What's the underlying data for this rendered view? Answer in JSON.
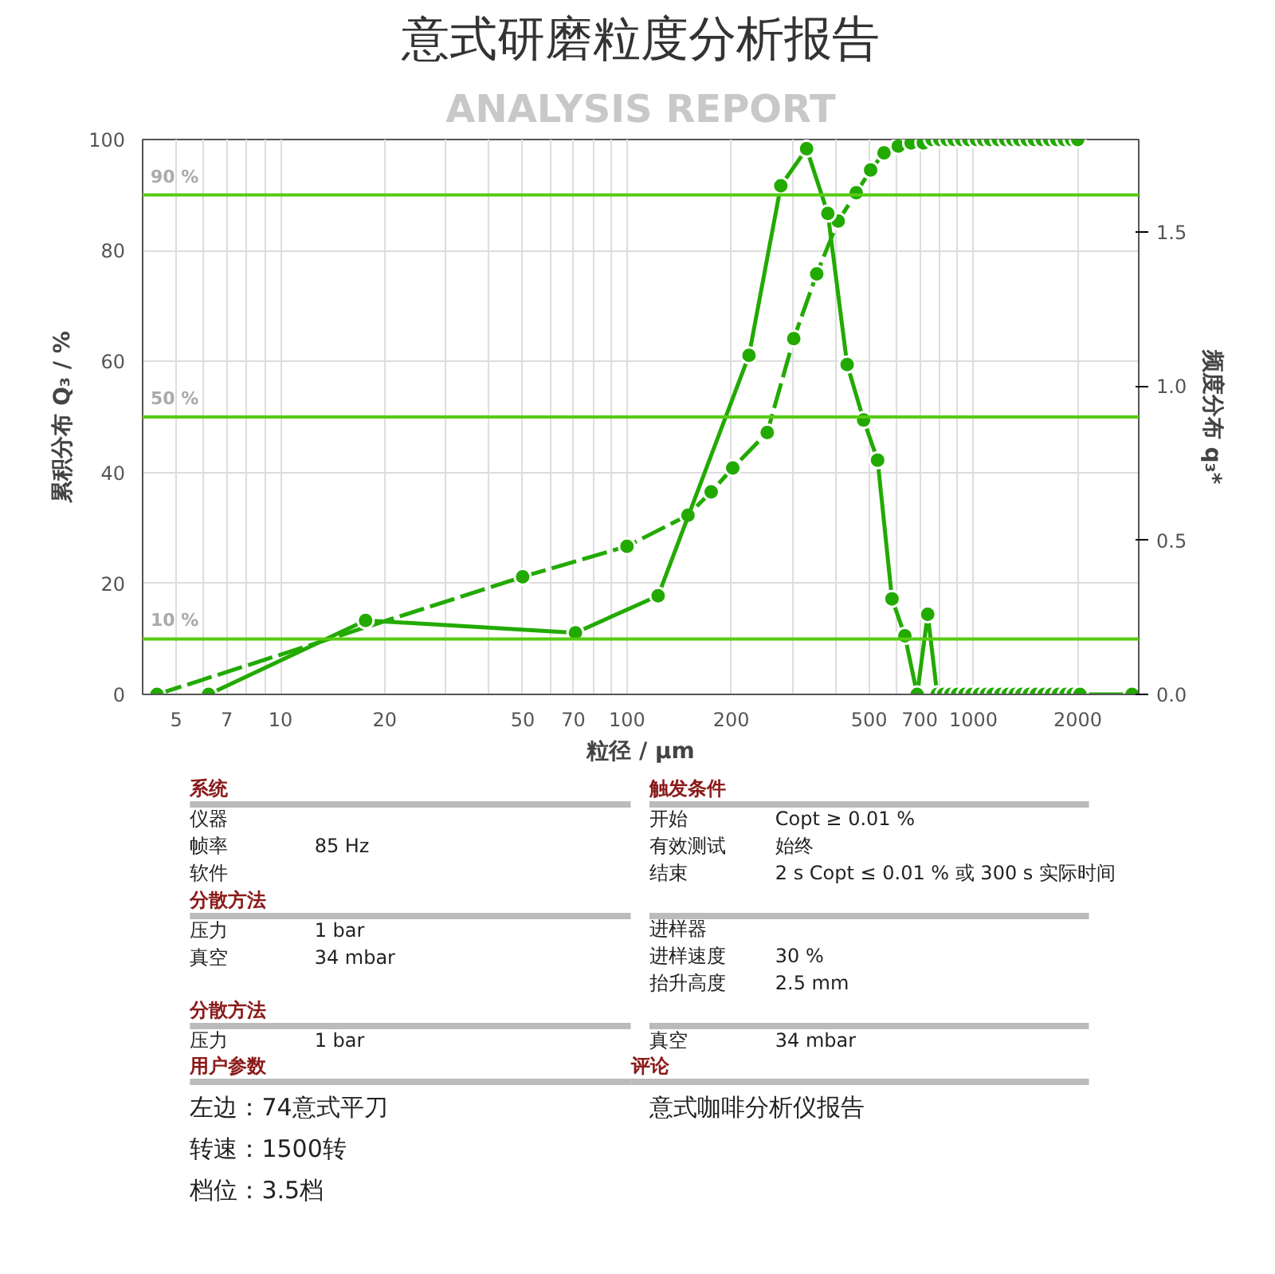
{
  "chart_data": [
    {
      "type": "line",
      "title": "意式研磨粒度分析报告",
      "subtitle": "ANALYSIS REPORT",
      "xlabel": "粒径 / µm",
      "ylabel": "累积分布 Q₃ / %",
      "y2label": "频度分布 q₃*",
      "log": "x",
      "xlim": [
        4,
        3000
      ],
      "xticks": [
        5,
        7,
        10,
        20,
        50,
        70,
        100,
        200,
        500,
        700,
        1000,
        2000
      ],
      "ylim": [
        0,
        100
      ],
      "yticks": [
        0,
        20,
        40,
        60,
        80,
        100
      ],
      "y2lim": [
        0,
        1.8
      ],
      "y2ticks": [
        {
          "value": 0,
          "label": "0.0"
        },
        {
          "value": 0.5,
          "label": "0.5"
        },
        {
          "value": 1,
          "label": "1.0"
        },
        {
          "value": 1.5,
          "label": "1.5"
        }
      ],
      "grid": true,
      "marker": "circle",
      "series": [
        {
          "color": "#22aa00",
          "line_style": "dashed",
          "x": [
            4.4,
            50,
            100,
            150,
            175,
            202,
            254,
            303,
            353,
            407,
            459,
            505,
            552,
            607,
            661,
            717,
            760,
            800,
            840,
            880,
            925,
            970,
            1020,
            1070,
            1120,
            1180,
            1240,
            1300,
            1360,
            1430,
            1500,
            1580,
            1660,
            1740,
            1830,
            1920,
            2000
          ],
          "values": [
            0,
            21.2,
            26.7,
            32.3,
            36.5,
            40.8,
            47.2,
            64.1,
            75.8,
            85.3,
            90.4,
            94.5,
            97.6,
            98.8,
            99.4,
            99.4,
            100,
            100,
            100,
            100,
            100,
            100,
            100,
            100,
            100,
            100,
            100,
            100,
            100,
            100,
            100,
            100,
            100,
            100,
            100,
            100,
            100
          ]
        },
        {
          "color": "#22aa00",
          "line_style": "solid",
          "axis": "y2",
          "x": [
            6.2,
            17.6,
            71,
            123,
            225,
            278,
            330,
            380,
            432,
            482,
            529,
            582,
            634,
            688,
            738,
            786,
            820,
            860,
            900,
            945,
            990,
            1040,
            1090,
            1140,
            1200,
            1260,
            1320,
            1380,
            1450,
            1520,
            1600,
            1680,
            1760,
            1850,
            1940,
            2030,
            2870
          ],
          "values": [
            0,
            0.24,
            0.2,
            0.32,
            1.1,
            1.65,
            1.77,
            1.56,
            1.07,
            0.89,
            0.76,
            0.31,
            0.19,
            0,
            0.26,
            0,
            0,
            0,
            0,
            0,
            0,
            0,
            0,
            0,
            0,
            0,
            0,
            0,
            0,
            0,
            0,
            0,
            0,
            0,
            0,
            0,
            0
          ]
        }
      ],
      "ref_lines": [
        {
          "axis": "y",
          "value": 10,
          "label": "10 %",
          "color": "#55cc11"
        },
        {
          "axis": "y",
          "value": 50,
          "label": "50 %",
          "color": "#55cc11"
        },
        {
          "axis": "y",
          "value": 90,
          "label": "90 %",
          "color": "#55cc11"
        }
      ]
    },
    {
      "type": "other",
      "annotations": [
        "系统",
        "仪器",
        "帧率",
        "85 Hz",
        "软件",
        "分散方法",
        "压力",
        "1 bar",
        "真空",
        "34 mbar",
        "分散方法",
        "压力",
        "1 bar",
        "用户参数",
        "左边：74意式平刀",
        "转速：1500转",
        "档位：3.5档",
        "触发条件",
        "开始",
        "Copt ≥ 0.01 %",
        "有效测试",
        "始终",
        "结束",
        "2 s Copt ≤ 0.01 % 或 300 s 实际时间",
        "进样器",
        "进样速度",
        "30 %",
        "抬升高度",
        "2.5 mm",
        "真空",
        "34 mbar",
        "评论",
        "意式咖啡分析仪报告"
      ]
    }
  ]
}
